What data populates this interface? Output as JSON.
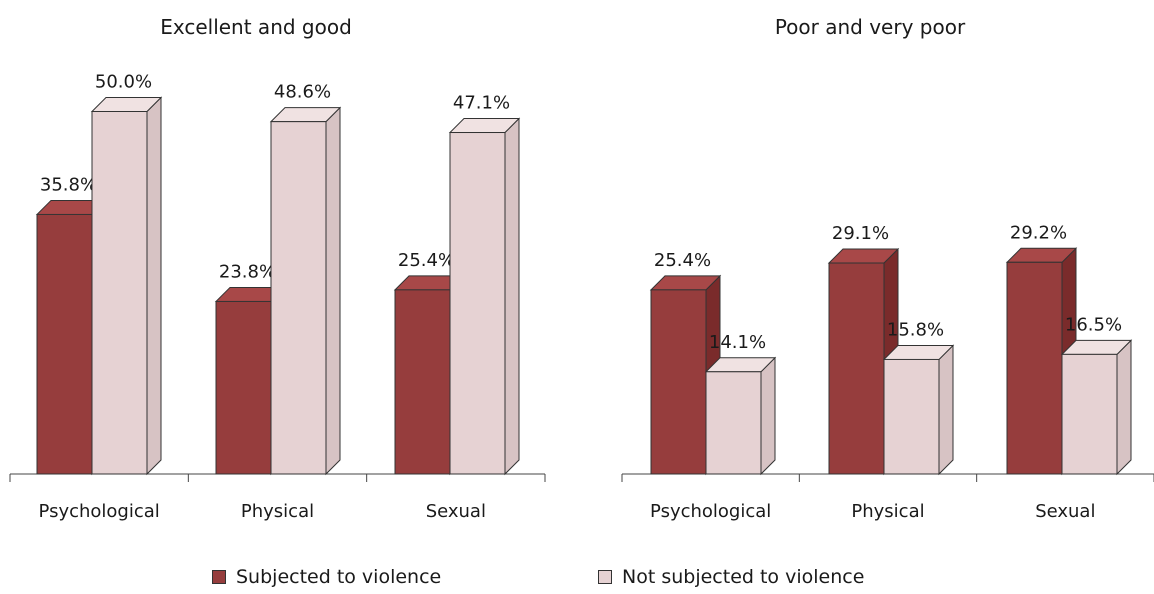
{
  "chart_data": [
    {
      "type": "bar",
      "title": "Excellent and good",
      "categories": [
        "Psychological",
        "Physical",
        "Sexual"
      ],
      "series": [
        {
          "name": "Subjected to violence",
          "values": [
            35.8,
            23.8,
            25.4
          ],
          "labels": [
            "35.8%",
            "23.8%",
            "25.4%"
          ]
        },
        {
          "name": "Not subjected to violence",
          "values": [
            50.0,
            48.6,
            47.1
          ],
          "labels": [
            "50.0%",
            "48.6%",
            "47.1%"
          ]
        }
      ],
      "ylim": [
        0,
        50
      ]
    },
    {
      "type": "bar",
      "title": "Poor and very poor",
      "categories": [
        "Psychological",
        "Physical",
        "Sexual"
      ],
      "series": [
        {
          "name": "Subjected to violence",
          "values": [
            25.4,
            29.1,
            29.2
          ],
          "labels": [
            "25.4%",
            "29.1%",
            "29.2%"
          ]
        },
        {
          "name": "Not subjected to violence",
          "values": [
            14.1,
            15.8,
            16.5
          ],
          "labels": [
            "14.1%",
            "15.8%",
            "16.5%"
          ]
        }
      ],
      "ylim": [
        0,
        30
      ]
    }
  ],
  "legend": [
    {
      "label": "Subjected to violence",
      "color": "#963d3d"
    },
    {
      "label": "Not subjected to violence",
      "color": "#e6d2d3"
    }
  ],
  "colors": {
    "subjected_front": "#963d3d",
    "subjected_side": "#7a2b2b",
    "subjected_top": "#a84848",
    "not_front": "#e6d2d3",
    "not_side": "#d7c3c4",
    "not_top": "#f0e2e2"
  }
}
